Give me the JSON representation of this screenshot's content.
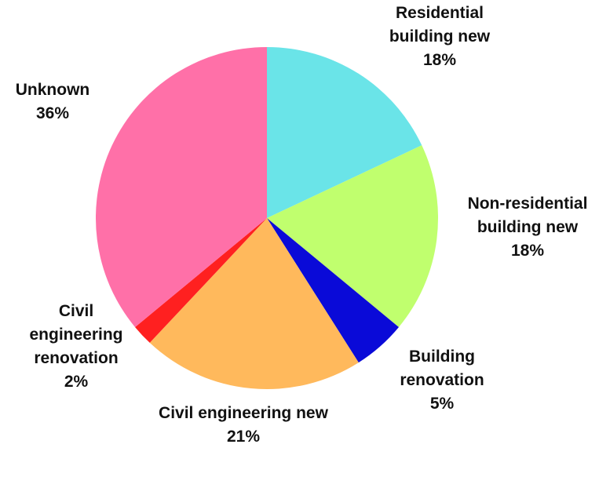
{
  "chart_data": {
    "type": "pie",
    "categories": [
      "Residential building new",
      "Non-residential building new",
      "Building renovation",
      "Civil engineering new",
      "Civil engineering renovation",
      "Unknown"
    ],
    "values": [
      18,
      18,
      5,
      21,
      2,
      36
    ],
    "value_labels": [
      "18%",
      "18%",
      "5%",
      "21%",
      "2%",
      "36%"
    ],
    "colors": [
      "#6ae4e8",
      "#c0ff6e",
      "#0a0ad8",
      "#ffb95c",
      "#ff2020",
      "#ff70a8"
    ]
  }
}
